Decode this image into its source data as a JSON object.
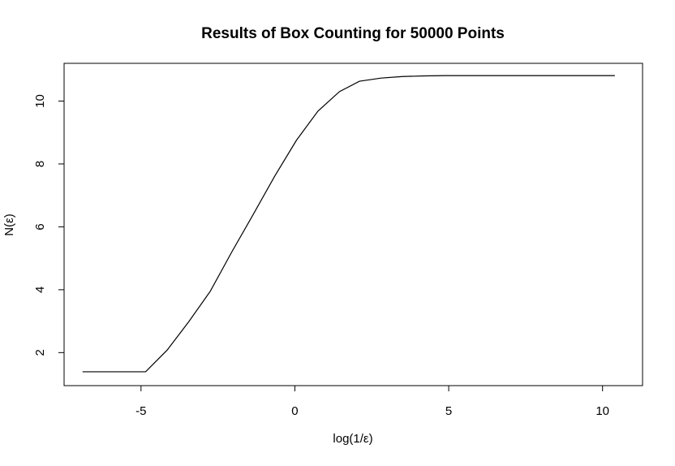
{
  "chart_data": {
    "type": "line",
    "title": "Results of Box Counting for 50000 Points",
    "xlabel": "log(1/ε)",
    "ylabel": "N(ε)",
    "xlim": [
      -7.5,
      11.3
    ],
    "ylim": [
      0.95,
      11.2
    ],
    "x_ticks": [
      -5,
      0,
      5,
      10
    ],
    "y_ticks": [
      2,
      4,
      6,
      8,
      10
    ],
    "grid": false,
    "series": [
      {
        "color": "#000000",
        "x": [
          -6.9,
          -4.85,
          -4.15,
          -3.45,
          -2.75,
          -2.05,
          -1.35,
          -0.65,
          0.05,
          0.75,
          1.45,
          2.1,
          2.8,
          3.5,
          4.2,
          4.9,
          5.6,
          6.3,
          7.0,
          7.7,
          8.4,
          9.1,
          9.8,
          10.4
        ],
        "y": [
          1.39,
          1.39,
          2.08,
          2.98,
          3.95,
          5.2,
          6.4,
          7.62,
          8.75,
          9.68,
          10.3,
          10.63,
          10.73,
          10.78,
          10.8,
          10.81,
          10.81,
          10.81,
          10.81,
          10.81,
          10.81,
          10.81,
          10.81,
          10.81
        ]
      }
    ]
  }
}
